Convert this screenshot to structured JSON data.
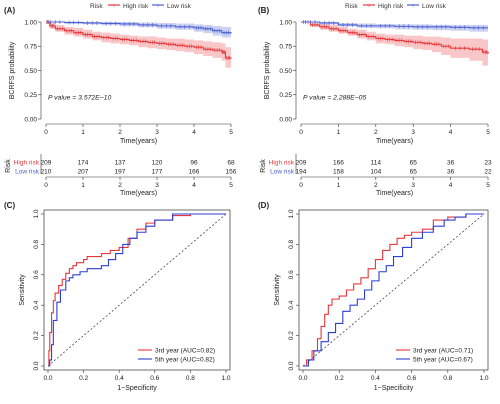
{
  "chart_data": [
    {
      "panel": "(A)",
      "type": "line",
      "subtype": "kaplan-meier",
      "legend_title": "Risk",
      "legend_entries": [
        "High risk",
        "Low risk"
      ],
      "ylabel": "BCRFS probability",
      "xlabel": "Time(years)",
      "xlim": [
        0,
        5
      ],
      "ylim": [
        0,
        1
      ],
      "x_ticks": [
        "0",
        "1",
        "2",
        "3",
        "4",
        "5"
      ],
      "y_ticks": [
        "0.00",
        "0.25",
        "0.50",
        "0.75",
        "1.00"
      ],
      "p_value_label": "P value = 3.572E−10",
      "series": [
        {
          "name": "High risk",
          "color": "#e8373a",
          "x": [
            0,
            0.1,
            0.25,
            0.5,
            0.75,
            1.0,
            1.25,
            1.5,
            1.75,
            2.0,
            2.25,
            2.5,
            2.75,
            3.0,
            3.25,
            3.5,
            3.75,
            4.0,
            4.25,
            4.5,
            4.75,
            4.85,
            5.0
          ],
          "y": [
            1.0,
            0.96,
            0.93,
            0.91,
            0.89,
            0.87,
            0.85,
            0.84,
            0.83,
            0.82,
            0.81,
            0.8,
            0.79,
            0.78,
            0.77,
            0.76,
            0.75,
            0.74,
            0.72,
            0.71,
            0.69,
            0.63,
            0.62
          ],
          "lower": [
            1.0,
            0.93,
            0.9,
            0.87,
            0.85,
            0.83,
            0.81,
            0.79,
            0.78,
            0.77,
            0.76,
            0.74,
            0.73,
            0.72,
            0.71,
            0.7,
            0.69,
            0.67,
            0.65,
            0.63,
            0.6,
            0.53,
            0.52
          ],
          "upper": [
            1.0,
            0.99,
            0.97,
            0.95,
            0.94,
            0.92,
            0.9,
            0.89,
            0.88,
            0.87,
            0.86,
            0.85,
            0.85,
            0.84,
            0.83,
            0.83,
            0.82,
            0.81,
            0.8,
            0.79,
            0.78,
            0.74,
            0.73
          ]
        },
        {
          "name": "Low risk",
          "color": "#4a5fd0",
          "x": [
            0,
            0.5,
            1.0,
            1.5,
            2.0,
            2.5,
            3.0,
            3.5,
            4.0,
            4.25,
            4.5,
            4.75,
            5.0
          ],
          "y": [
            1.0,
            0.995,
            0.99,
            0.985,
            0.98,
            0.97,
            0.96,
            0.95,
            0.94,
            0.93,
            0.91,
            0.89,
            0.88
          ],
          "lower": [
            1.0,
            0.98,
            0.975,
            0.965,
            0.955,
            0.945,
            0.93,
            0.92,
            0.9,
            0.885,
            0.86,
            0.84,
            0.82
          ],
          "upper": [
            1.0,
            1.0,
            1.0,
            1.0,
            1.0,
            0.995,
            0.99,
            0.985,
            0.975,
            0.97,
            0.96,
            0.95,
            0.94
          ]
        }
      ],
      "risk_table": {
        "title": "Risk",
        "xlabel": "Time(years)",
        "x_ticks": [
          "0",
          "1",
          "2",
          "3",
          "4",
          "5"
        ],
        "rows": [
          {
            "name": "High risk",
            "color": "#e8373a",
            "values": [
              "209",
              "174",
              "137",
              "120",
              "96",
              "68"
            ]
          },
          {
            "name": "Low risk",
            "color": "#4a5fd0",
            "values": [
              "210",
              "207",
              "197",
              "177",
              "166",
              "156"
            ]
          }
        ]
      }
    },
    {
      "panel": "(B)",
      "type": "line",
      "subtype": "kaplan-meier",
      "legend_title": "Risk",
      "legend_entries": [
        "High risk",
        "Low risk"
      ],
      "ylabel": "BCRFS probability",
      "xlabel": "Time(years)",
      "xlim": [
        0,
        5
      ],
      "ylim": [
        0,
        1
      ],
      "x_ticks": [
        "0",
        "1",
        "2",
        "3",
        "4",
        "5"
      ],
      "y_ticks": [
        "0.00",
        "0.25",
        "0.50",
        "0.75",
        "1.00"
      ],
      "p_value_label": "P value = 2.288E−05",
      "series": [
        {
          "name": "High risk",
          "color": "#e8373a",
          "x": [
            0,
            0.25,
            0.5,
            0.75,
            1.0,
            1.25,
            1.5,
            1.75,
            2.0,
            2.25,
            2.5,
            2.75,
            3.0,
            3.25,
            3.5,
            3.75,
            4.0,
            4.5,
            4.85,
            5.0
          ],
          "y": [
            1.0,
            0.97,
            0.95,
            0.93,
            0.91,
            0.89,
            0.87,
            0.85,
            0.83,
            0.82,
            0.81,
            0.8,
            0.79,
            0.78,
            0.77,
            0.75,
            0.73,
            0.72,
            0.69,
            0.67
          ],
          "lower": [
            1.0,
            0.95,
            0.92,
            0.9,
            0.88,
            0.86,
            0.83,
            0.81,
            0.78,
            0.77,
            0.75,
            0.74,
            0.72,
            0.71,
            0.69,
            0.66,
            0.63,
            0.6,
            0.55,
            0.52
          ],
          "upper": [
            1.0,
            0.99,
            0.98,
            0.97,
            0.95,
            0.93,
            0.92,
            0.9,
            0.88,
            0.87,
            0.87,
            0.86,
            0.86,
            0.85,
            0.85,
            0.84,
            0.83,
            0.83,
            0.82,
            0.81
          ]
        },
        {
          "name": "Low risk",
          "color": "#4a5fd0",
          "x": [
            0,
            0.5,
            1.0,
            1.5,
            2.0,
            2.5,
            3.0,
            3.5,
            4.0,
            4.5,
            5.0
          ],
          "y": [
            1.0,
            0.99,
            0.97,
            0.96,
            0.96,
            0.955,
            0.95,
            0.95,
            0.945,
            0.94,
            0.94
          ],
          "lower": [
            1.0,
            0.975,
            0.955,
            0.94,
            0.935,
            0.925,
            0.92,
            0.915,
            0.91,
            0.9,
            0.9
          ],
          "upper": [
            1.0,
            1.0,
            0.99,
            0.985,
            0.98,
            0.978,
            0.975,
            0.972,
            0.97,
            0.97,
            0.97
          ]
        }
      ],
      "risk_table": {
        "title": "Risk",
        "xlabel": "Time(years)",
        "x_ticks": [
          "0",
          "1",
          "2",
          "3",
          "4",
          "5"
        ],
        "rows": [
          {
            "name": "High risk",
            "color": "#e8373a",
            "values": [
              "209",
              "166",
              "114",
              "65",
              "36",
              "23"
            ]
          },
          {
            "name": "Low risk",
            "color": "#4a5fd0",
            "values": [
              "194",
              "158",
              "104",
              "65",
              "36",
              "22"
            ]
          }
        ]
      }
    },
    {
      "panel": "(C)",
      "type": "line",
      "subtype": "roc",
      "xlabel": "1−Specificity",
      "ylabel": "Sensitivity",
      "xlim": [
        0,
        1
      ],
      "ylim": [
        0,
        1
      ],
      "x_ticks": [
        "0.0",
        "0.2",
        "0.4",
        "0.6",
        "0.8",
        "1.0"
      ],
      "y_ticks": [
        "0.0",
        "0.2",
        "0.4",
        "0.6",
        "0.8",
        "1.0"
      ],
      "series": [
        {
          "name": "3rd year (AUC=0.82)",
          "color": "#e8373a",
          "x": [
            0,
            0.005,
            0.01,
            0.02,
            0.03,
            0.04,
            0.06,
            0.08,
            0.1,
            0.12,
            0.14,
            0.16,
            0.2,
            0.22,
            0.26,
            0.3,
            0.35,
            0.4,
            0.45,
            0.5,
            0.55,
            0.6,
            0.7,
            0.8,
            0.9,
            1.0
          ],
          "y": [
            0,
            0.1,
            0.22,
            0.35,
            0.43,
            0.48,
            0.53,
            0.57,
            0.61,
            0.64,
            0.66,
            0.68,
            0.7,
            0.72,
            0.72,
            0.74,
            0.76,
            0.78,
            0.84,
            0.9,
            0.94,
            0.96,
            0.99,
            1.0,
            1.0,
            1.0
          ]
        },
        {
          "name": "5th year (AUC=0.82)",
          "color": "#2b3fd6",
          "x": [
            0,
            0.01,
            0.02,
            0.03,
            0.05,
            0.07,
            0.1,
            0.12,
            0.14,
            0.18,
            0.22,
            0.26,
            0.3,
            0.34,
            0.38,
            0.42,
            0.46,
            0.5,
            0.55,
            0.6,
            0.7,
            0.8,
            0.9,
            1.0
          ],
          "y": [
            0,
            0.04,
            0.14,
            0.3,
            0.42,
            0.5,
            0.56,
            0.58,
            0.6,
            0.62,
            0.64,
            0.64,
            0.66,
            0.7,
            0.74,
            0.8,
            0.84,
            0.88,
            0.92,
            0.96,
            1.0,
            1.0,
            1.0,
            1.0
          ]
        }
      ]
    },
    {
      "panel": "(D)",
      "type": "line",
      "subtype": "roc",
      "xlabel": "1−Specificity",
      "ylabel": "Sensitivity",
      "xlim": [
        0,
        1
      ],
      "ylim": [
        0,
        1
      ],
      "x_ticks": [
        "0.0",
        "0.2",
        "0.4",
        "0.6",
        "0.8",
        "1.0"
      ],
      "y_ticks": [
        "0.0",
        "0.2",
        "0.4",
        "0.6",
        "0.8",
        "1.0"
      ],
      "series": [
        {
          "name": "3rd year (AUC=0.71)",
          "color": "#e8373a",
          "x": [
            0,
            0.02,
            0.05,
            0.08,
            0.1,
            0.12,
            0.14,
            0.16,
            0.2,
            0.24,
            0.28,
            0.32,
            0.36,
            0.4,
            0.44,
            0.48,
            0.52,
            0.56,
            0.6,
            0.66,
            0.72,
            0.8,
            0.9,
            1.0
          ],
          "y": [
            0,
            0.04,
            0.1,
            0.18,
            0.26,
            0.34,
            0.4,
            0.44,
            0.46,
            0.5,
            0.54,
            0.58,
            0.64,
            0.7,
            0.76,
            0.8,
            0.84,
            0.86,
            0.88,
            0.9,
            0.96,
            0.98,
            1.0,
            1.0
          ]
        },
        {
          "name": "5th year (AUC=0.67)",
          "color": "#2b3fd6",
          "x": [
            0,
            0.03,
            0.06,
            0.1,
            0.14,
            0.18,
            0.22,
            0.26,
            0.3,
            0.34,
            0.38,
            0.42,
            0.46,
            0.5,
            0.55,
            0.6,
            0.66,
            0.72,
            0.78,
            0.84,
            0.9,
            1.0
          ],
          "y": [
            0,
            0.04,
            0.1,
            0.16,
            0.22,
            0.28,
            0.36,
            0.4,
            0.44,
            0.5,
            0.56,
            0.62,
            0.66,
            0.72,
            0.78,
            0.84,
            0.88,
            0.92,
            0.96,
            0.98,
            1.0,
            1.0
          ]
        }
      ]
    }
  ]
}
